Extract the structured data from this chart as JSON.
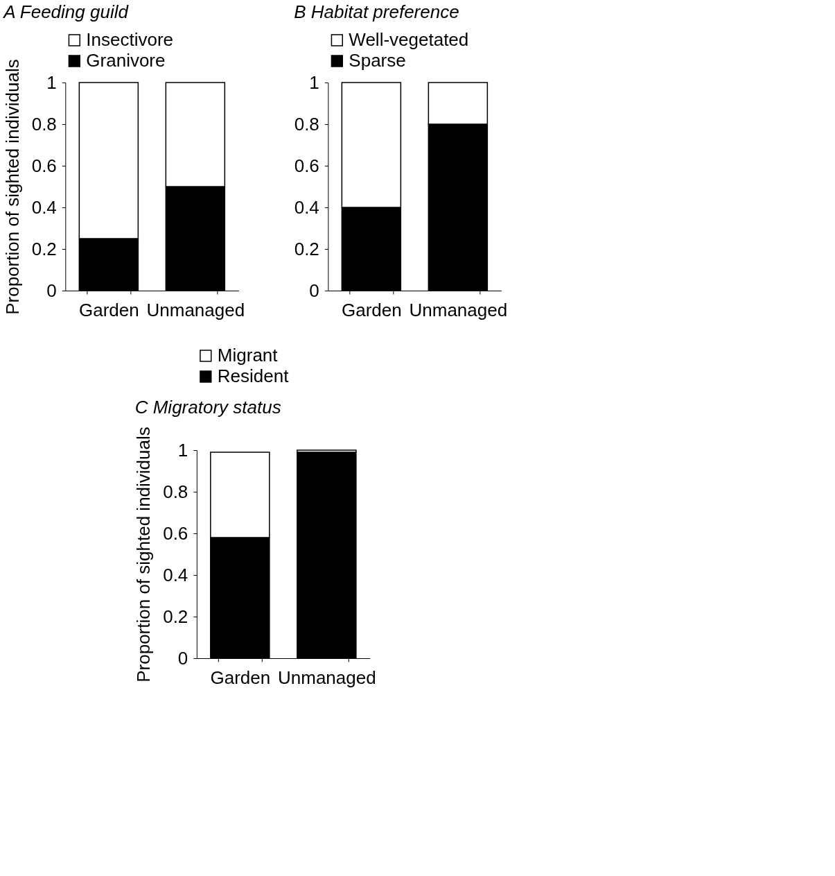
{
  "chart_data": [
    {
      "type": "bar",
      "title": "A Feeding guild",
      "ylabel": "Proportion of sighted individuals",
      "categories": [
        "Garden",
        "Unmanaged"
      ],
      "stacked": true,
      "ylim": [
        0,
        1
      ],
      "yticks": [
        0,
        0.2,
        0.4,
        0.6,
        0.8,
        1
      ],
      "grid": false,
      "legend": "top",
      "series": [
        {
          "name": "Granivore",
          "color": "#000000",
          "values": [
            0.25,
            0.5
          ]
        },
        {
          "name": "Insectivore",
          "color": "#ffffff",
          "values": [
            0.75,
            0.5
          ]
        }
      ]
    },
    {
      "type": "bar",
      "title": "B Habitat preference",
      "categories": [
        "Garden",
        "Unmanaged"
      ],
      "stacked": true,
      "ylim": [
        0,
        1
      ],
      "yticks": [
        0,
        0.2,
        0.4,
        0.6,
        0.8,
        1
      ],
      "grid": false,
      "legend": "top",
      "series": [
        {
          "name": "Sparse",
          "color": "#000000",
          "values": [
            0.4,
            0.8
          ]
        },
        {
          "name": "Well-vegetated",
          "color": "#ffffff",
          "values": [
            0.6,
            0.2
          ]
        }
      ]
    },
    {
      "type": "bar",
      "title": "C Migratory status",
      "ylabel": "Proportion of sighted individuals",
      "categories": [
        "Garden",
        "Unmanaged"
      ],
      "stacked": true,
      "ylim": [
        0,
        1
      ],
      "yticks": [
        0,
        0.2,
        0.4,
        0.6,
        0.8,
        1
      ],
      "grid": false,
      "legend": "top",
      "series": [
        {
          "name": "Resident",
          "color": "#000000",
          "values": [
            0.58,
            0.99
          ]
        },
        {
          "name": "Migrant",
          "color": "#ffffff",
          "values": [
            0.41,
            0.01
          ]
        }
      ]
    }
  ]
}
